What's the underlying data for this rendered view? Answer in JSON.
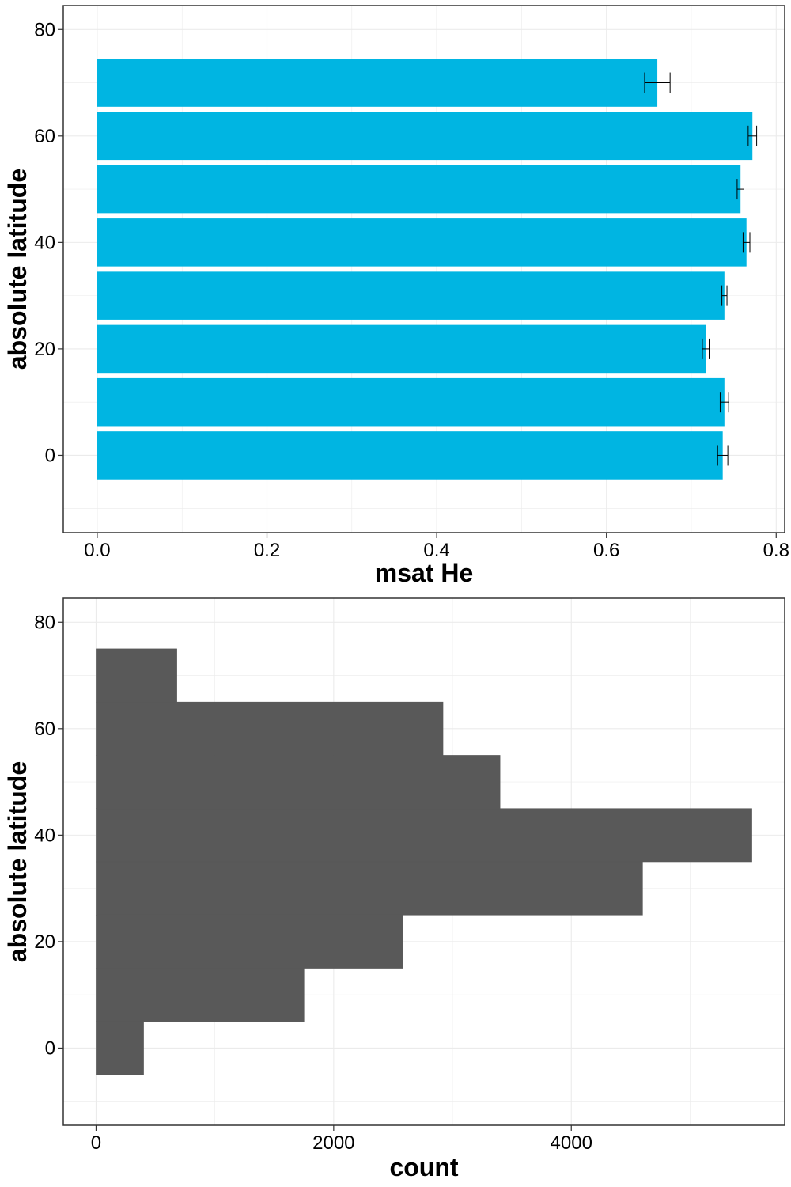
{
  "chart_data": [
    {
      "type": "bar",
      "orientation": "horizontal",
      "color": "#00B5E2",
      "errorbar_color": "#000000",
      "x": [
        0,
        10,
        20,
        30,
        40,
        50,
        60,
        70
      ],
      "values": [
        0.737,
        0.739,
        0.717,
        0.739,
        0.765,
        0.758,
        0.772,
        0.66
      ],
      "errors": [
        0.006,
        0.005,
        0.004,
        0.003,
        0.004,
        0.004,
        0.005,
        0.015
      ],
      "xlabel": "msat He",
      "ylabel": "absolute latitude",
      "xlim": [
        -0.04,
        0.81
      ],
      "ylim": [
        -14.5,
        84.5
      ],
      "xticks": [
        0.0,
        0.2,
        0.4,
        0.6,
        0.8
      ],
      "xtick_labels": [
        "0.0",
        "0.2",
        "0.4",
        "0.6",
        "0.8"
      ],
      "yticks": [
        0,
        20,
        40,
        60,
        80
      ],
      "ytick_labels": [
        "0",
        "20",
        "40",
        "60",
        "80"
      ],
      "grid": true
    },
    {
      "type": "histogram",
      "orientation": "horizontal",
      "color": "#595959",
      "bin_centers": [
        0,
        10,
        20,
        30,
        40,
        50,
        60,
        70
      ],
      "bin_width": 10,
      "values": [
        400,
        1750,
        2580,
        4600,
        5520,
        3400,
        2920,
        680
      ],
      "xlabel": "count",
      "ylabel": "absolute latitude",
      "xlim": [
        -276,
        5796
      ],
      "ylim": [
        -14.5,
        84.5
      ],
      "xticks": [
        0,
        2000,
        4000
      ],
      "xtick_labels": [
        "0",
        "2000",
        "4000"
      ],
      "yticks": [
        0,
        20,
        40,
        60,
        80
      ],
      "ytick_labels": [
        "0",
        "20",
        "40",
        "60",
        "80"
      ],
      "grid": true
    }
  ]
}
